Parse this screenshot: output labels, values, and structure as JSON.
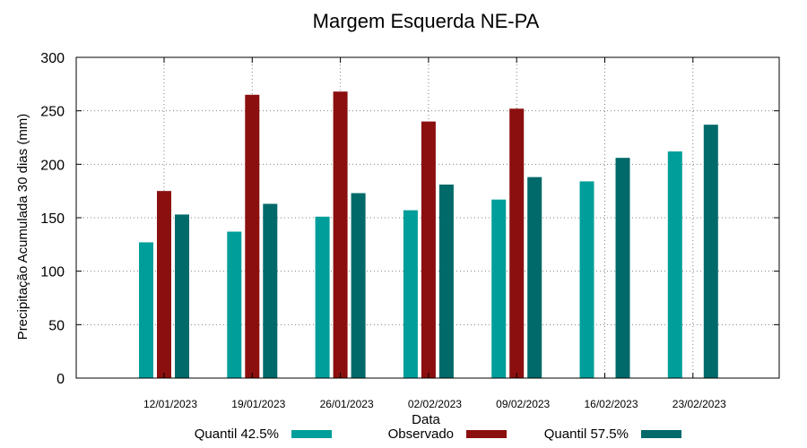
{
  "chart_data": {
    "type": "bar",
    "title": "Margem Esquerda NE-PA",
    "xlabel": "Data",
    "ylabel": "Precipitação Acumulada 30 dias (mm)",
    "ylim": [
      0,
      300
    ],
    "yticks": [
      0,
      50,
      100,
      150,
      200,
      250,
      300
    ],
    "categories": [
      "12/01/2023",
      "19/01/2023",
      "26/01/2023",
      "02/02/2023",
      "09/02/2023",
      "16/02/2023",
      "23/02/2023"
    ],
    "grid": true,
    "series": [
      {
        "name": "Quantil 42.5%",
        "color": "#009e9a",
        "values": [
          127,
          137,
          151,
          157,
          167,
          184,
          212
        ]
      },
      {
        "name": "Observado",
        "color": "#8b0f0f",
        "values": [
          175,
          265,
          268,
          240,
          252,
          null,
          null
        ]
      },
      {
        "name": "Quantil 57.5%",
        "color": "#00696a",
        "values": [
          153,
          163,
          173,
          181,
          188,
          206,
          237
        ]
      }
    ]
  }
}
